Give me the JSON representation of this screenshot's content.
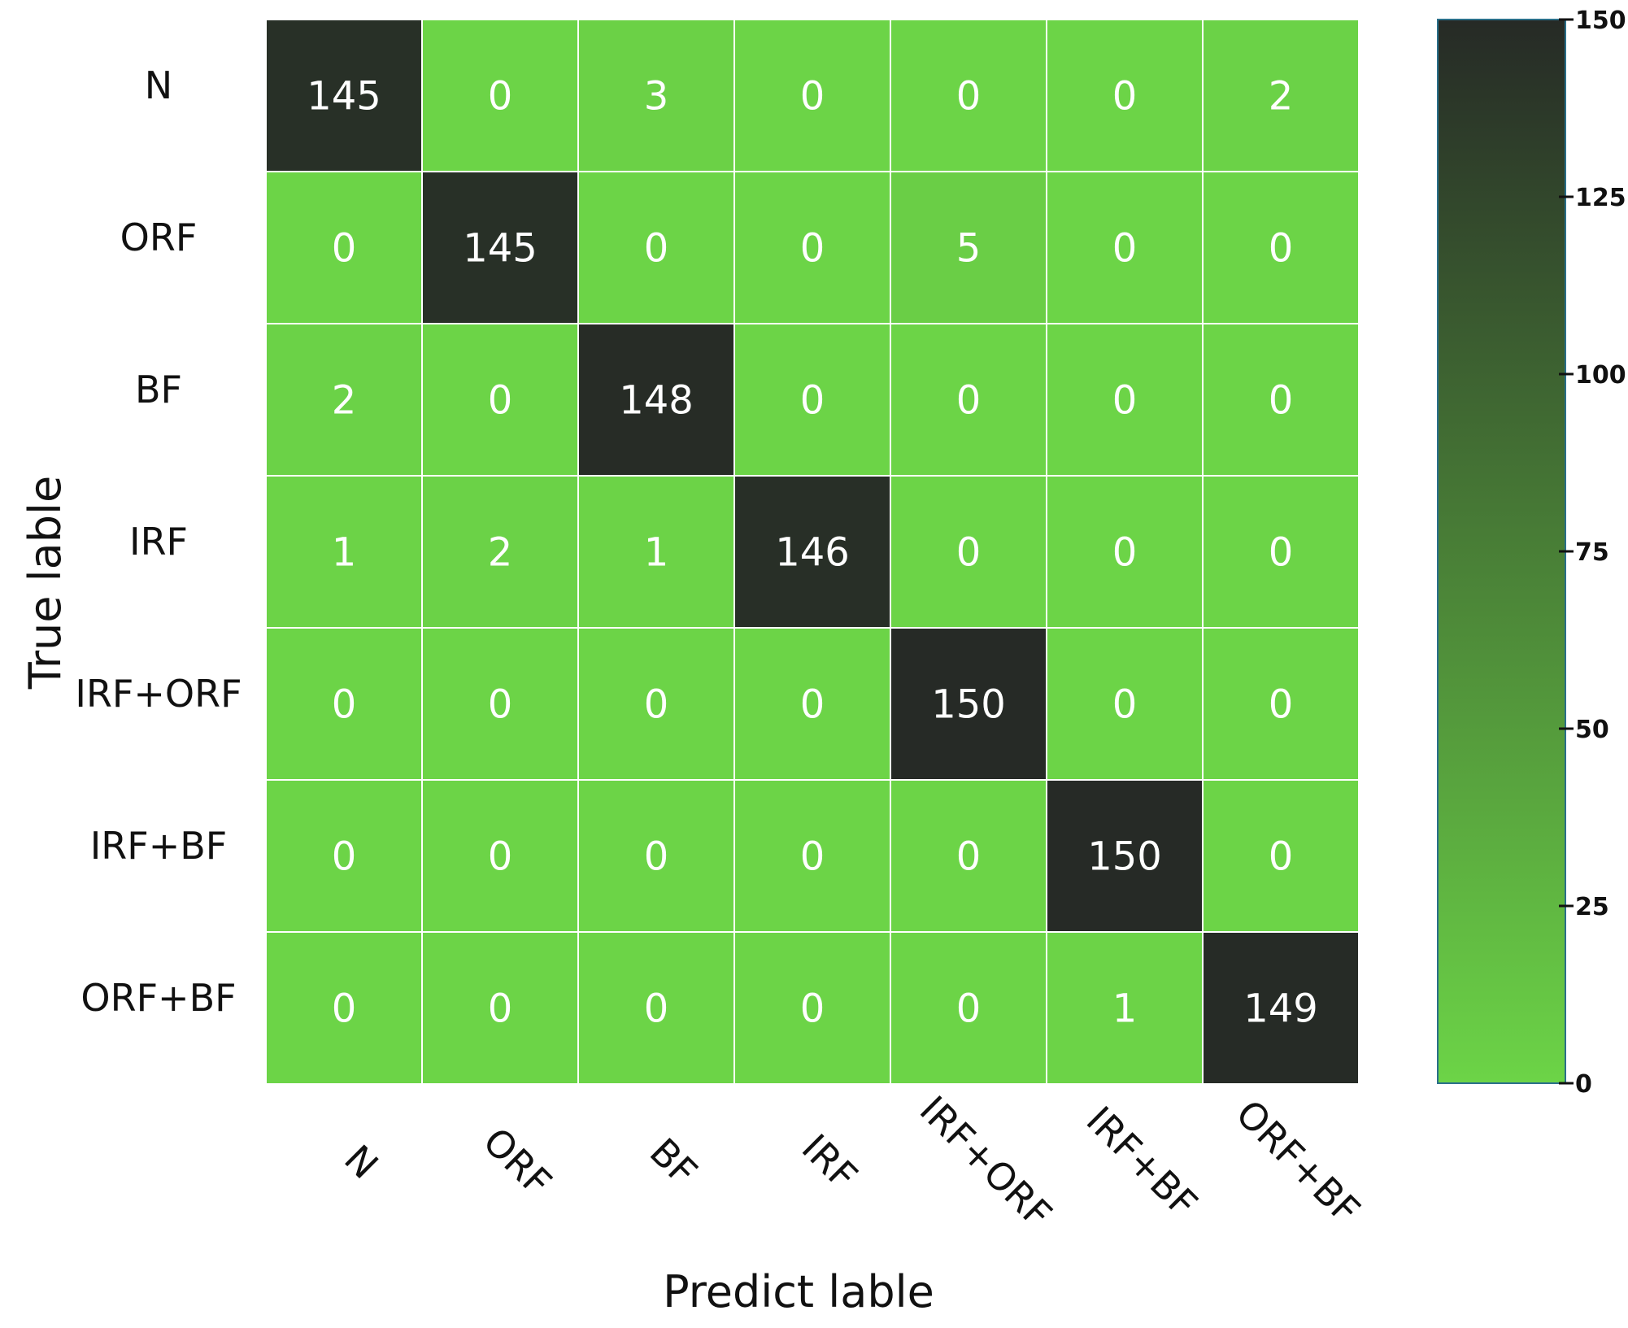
{
  "chart_data": {
    "type": "heatmap",
    "title": "",
    "xlabel": "Predict lable",
    "ylabel": "True lable",
    "x_categories": [
      "N",
      "ORF",
      "BF",
      "IRF",
      "IRF+ORF",
      "IRF+BF",
      "ORF+BF"
    ],
    "y_categories": [
      "N",
      "ORF",
      "BF",
      "IRF",
      "IRF+ORF",
      "IRF+BF",
      "ORF+BF"
    ],
    "values": [
      [
        145,
        0,
        3,
        0,
        0,
        0,
        2
      ],
      [
        0,
        145,
        0,
        0,
        5,
        0,
        0
      ],
      [
        2,
        0,
        148,
        0,
        0,
        0,
        0
      ],
      [
        1,
        2,
        1,
        146,
        0,
        0,
        0
      ],
      [
        0,
        0,
        0,
        0,
        150,
        0,
        0
      ],
      [
        0,
        0,
        0,
        0,
        0,
        150,
        0
      ],
      [
        0,
        0,
        0,
        0,
        0,
        1,
        149
      ]
    ],
    "colorbar": {
      "min": 0,
      "max": 150,
      "ticks": [
        0,
        25,
        50,
        75,
        100,
        125,
        150
      ],
      "color_low": "#6cd447",
      "color_high": "#262a26"
    },
    "cell_border_color": "#ffffff",
    "grid": true,
    "legend": "right-colorbar"
  }
}
